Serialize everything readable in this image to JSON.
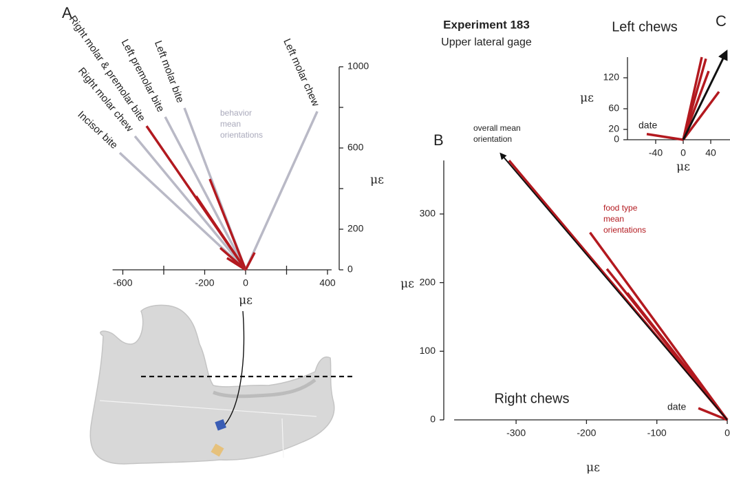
{
  "header": {
    "title": "Experiment 183",
    "subtitle": "Upper lateral gage"
  },
  "panel_labels": [
    "A",
    "B",
    "C"
  ],
  "chart_data": [
    {
      "type": "vector",
      "xlabel": "με",
      "ylabel": "με",
      "xlim": [
        -650,
        420
      ],
      "ylim": [
        0,
        1000
      ],
      "xticks": [
        -600,
        -200,
        0,
        400
      ],
      "xminorticks": [
        -400,
        200
      ],
      "yticks": [
        0,
        200,
        600,
        1000
      ],
      "yminorticks": [
        400,
        800
      ],
      "color": "#b9b9c6",
      "part_color": "#b3191f",
      "annotation": [
        "behavior",
        "mean",
        "orientations"
      ],
      "vectors": [
        {
          "name": "Incisor bite",
          "x": -615,
          "y": 576,
          "part_x": -91,
          "part_y": 58
        },
        {
          "name": "Right molar chew",
          "x": -541,
          "y": 658,
          "part_x": -124,
          "part_y": 108
        },
        {
          "name": "Right molar & premolar bite",
          "x": -484,
          "y": 708,
          "part_x": -484,
          "part_y": 708
        },
        {
          "name": "Left premolar bite",
          "x": -393,
          "y": 753,
          "part_x": -242,
          "part_y": 363
        },
        {
          "name": "Left molar bite",
          "x": -299,
          "y": 797,
          "part_x": -175,
          "part_y": 447
        },
        {
          "name": "Left molar chew",
          "x": 350,
          "y": 780,
          "part_x": 44,
          "part_y": 85
        }
      ]
    },
    {
      "type": "vector",
      "title": "Right chews",
      "xlabel": "με",
      "ylabel": "με",
      "xlim": [
        -388,
        0
      ],
      "ylim": [
        0,
        378
      ],
      "xticks": [
        -300,
        -200,
        -100,
        0
      ],
      "yticks": [
        0,
        100,
        200,
        300
      ],
      "color": "#b3191f",
      "annotation": [
        "food type",
        "mean",
        "orientations"
      ],
      "arrow": {
        "label": [
          "overall mean",
          "orientation"
        ],
        "x": -322,
        "y": 388,
        "color": "#111111"
      },
      "vectors": [
        {
          "x": -310,
          "y": 378
        },
        {
          "x": -195,
          "y": 273
        },
        {
          "x": -171,
          "y": 220
        },
        {
          "x": -142,
          "y": 185
        },
        {
          "label": "date",
          "x": -41,
          "y": 17
        }
      ]
    },
    {
      "type": "vector",
      "title": "Left chews",
      "xlabel": "με",
      "ylabel": "με",
      "xlim": [
        -81,
        68
      ],
      "ylim": [
        0,
        160
      ],
      "xticks": [
        -40,
        0,
        40
      ],
      "yticks": [
        0,
        20,
        60,
        120
      ],
      "color": "#b3191f",
      "arrow": {
        "x": 63,
        "y": 171,
        "color": "#111111"
      },
      "vectors": [
        {
          "x": 27,
          "y": 160
        },
        {
          "x": 33,
          "y": 157
        },
        {
          "x": 37,
          "y": 133
        },
        {
          "x": 52,
          "y": 93
        },
        {
          "label": "date",
          "x": -53,
          "y": 11
        }
      ]
    }
  ]
}
